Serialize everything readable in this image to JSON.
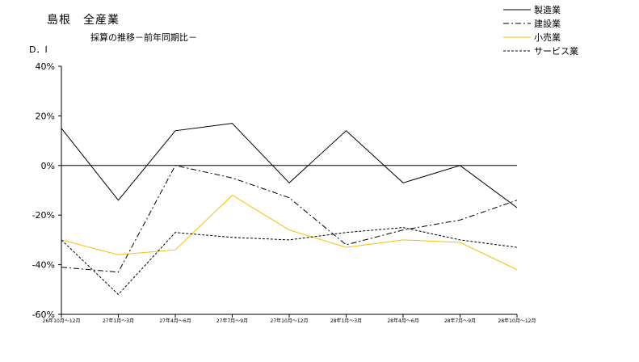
{
  "chart_data": {
    "type": "line",
    "title": "島根　全産業",
    "subtitle": "採算の推移－前年同期比－",
    "ylabel": "D．I",
    "xlabel": "",
    "ylim": [
      -60,
      40
    ],
    "yticks": [
      40,
      20,
      0,
      -20,
      -40,
      -60
    ],
    "ytick_labels": [
      "40%",
      "20%",
      "0%",
      "-20%",
      "-40%",
      "-60%"
    ],
    "categories": [
      "26年10月～12月",
      "27年1月～3月",
      "27年4月～6月",
      "27年7月～9月",
      "27年10月～12月",
      "28年1月～3月",
      "28年4月～6月",
      "28年7月～9月",
      "28年10月～12月"
    ],
    "legend_position": "top-right",
    "grid": false,
    "series": [
      {
        "name": "製造業",
        "color": "#000000",
        "dash": "solid",
        "values": [
          15,
          -14,
          14,
          17,
          -7,
          14,
          -7,
          0,
          -17
        ]
      },
      {
        "name": "建設業",
        "color": "#000000",
        "dash": "dashdot",
        "values": [
          -41,
          -43,
          0,
          -5,
          -13,
          -32,
          -26,
          -22,
          -14
        ]
      },
      {
        "name": "小売業",
        "color": "#f5c000",
        "dash": "solid",
        "values": [
          -30,
          -36,
          -34,
          -12,
          -26,
          -33,
          -30,
          -31,
          -42
        ]
      },
      {
        "name": "サービス業",
        "color": "#000000",
        "dash": "dashed",
        "values": [
          -30,
          -52,
          -27,
          -29,
          -30,
          -27,
          -25,
          -30,
          -33
        ]
      }
    ]
  }
}
